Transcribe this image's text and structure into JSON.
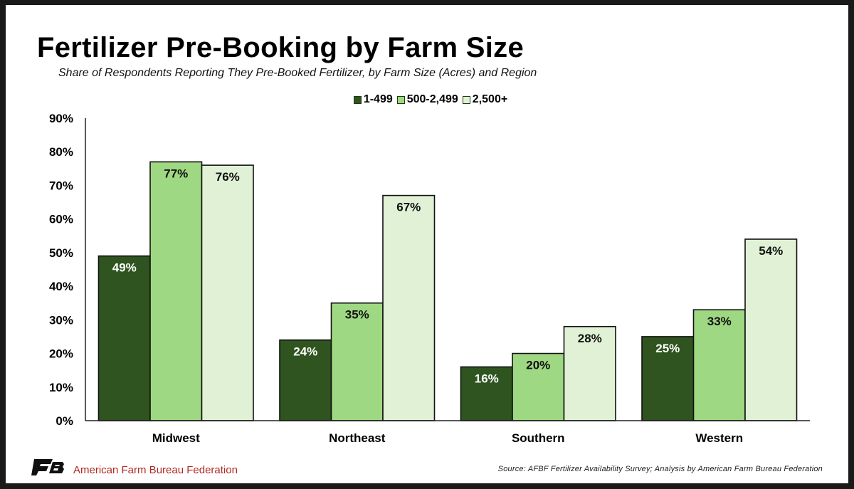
{
  "chart_data": {
    "type": "bar",
    "title": "Fertilizer Pre-Booking by Farm Size",
    "subtitle": "Share of Respondents Reporting They Pre-Booked Fertilizer, by Farm Size (Acres) and Region",
    "categories": [
      "Midwest",
      "Northeast",
      "Southern",
      "Western"
    ],
    "series": [
      {
        "name": "1-499",
        "color": "#2f5420",
        "label_color": "#ffffff",
        "values": [
          49,
          24,
          16,
          25
        ],
        "labels": [
          "49%",
          "24%",
          "16%",
          "25%"
        ]
      },
      {
        "name": "500-2,499",
        "color": "#9fd882",
        "label_color": "#111111",
        "values": [
          77,
          35,
          20,
          33
        ],
        "labels": [
          "77%",
          "35%",
          "20%",
          "33%"
        ]
      },
      {
        "name": "2,500+",
        "color": "#e0f1d5",
        "label_color": "#111111",
        "values": [
          76,
          67,
          28,
          54
        ],
        "labels": [
          "76%",
          "67%",
          "28%",
          "54%"
        ]
      }
    ],
    "ylim": [
      0,
      90
    ],
    "yticks": [
      "0%",
      "10%",
      "20%",
      "30%",
      "40%",
      "50%",
      "60%",
      "70%",
      "80%",
      "90%"
    ],
    "legend_position": "top-center",
    "grid": false
  },
  "footer": {
    "logo": "AFBF logo",
    "org_name": "American Farm Bureau Federation",
    "source": "Source: AFBF Fertilizer Availability Survey; Analysis by American Farm Bureau Federation"
  }
}
